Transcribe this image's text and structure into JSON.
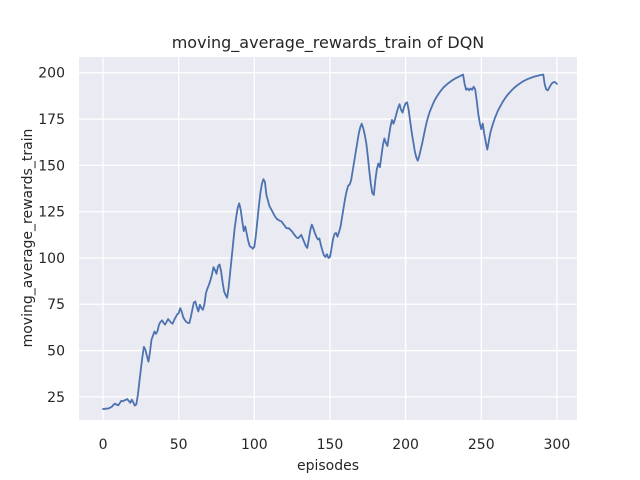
{
  "chart_data": {
    "type": "line",
    "title": "moving_average_rewards_train of DQN",
    "xlabel": "episodes",
    "ylabel": "moving_average_rewards_train",
    "x_ticks": [
      0,
      50,
      100,
      150,
      200,
      250,
      300
    ],
    "y_ticks": [
      25,
      50,
      75,
      100,
      125,
      150,
      175,
      200
    ],
    "xlim": [
      -15.9,
      313.3
    ],
    "ylim": [
      12.5,
      208.5
    ],
    "grid": true,
    "legend": null,
    "series": [
      {
        "name": "moving_average_rewards_train",
        "x_start": 0,
        "x_step": 1,
        "values": [
          18.5,
          18.4,
          18.7,
          18.6,
          18.9,
          19.3,
          19.8,
          20.8,
          21.3,
          20.8,
          20.4,
          21.5,
          22.8,
          22.6,
          23.0,
          23.4,
          23.8,
          22.8,
          21.8,
          23.5,
          22.0,
          20.3,
          21.0,
          26.0,
          33.0,
          40.0,
          46.5,
          52.0,
          50.5,
          47.0,
          44.0,
          49.0,
          55.8,
          58.0,
          60.3,
          59.0,
          60.5,
          64.0,
          65.5,
          66.3,
          65.0,
          64.0,
          65.5,
          67.0,
          66.0,
          65.0,
          64.5,
          66.5,
          68.0,
          69.5,
          70.2,
          72.9,
          71.0,
          68.0,
          66.5,
          65.5,
          65.0,
          64.8,
          68.0,
          72.0,
          76.0,
          76.5,
          73.5,
          71.1,
          74.7,
          73.0,
          72.0,
          75.0,
          81.0,
          83.5,
          85.5,
          88.0,
          91.0,
          95.0,
          93.5,
          91.5,
          95.5,
          96.5,
          93.0,
          87.0,
          82.0,
          80.0,
          78.5,
          84.0,
          92.0,
          100.0,
          108.0,
          116.0,
          122.0,
          127.0,
          129.5,
          126.0,
          120.0,
          114.5,
          117.0,
          113.0,
          109.0,
          106.3,
          105.8,
          105.0,
          106.0,
          112.0,
          120.0,
          128.0,
          135.0,
          140.0,
          142.5,
          141.0,
          134.0,
          131.0,
          128.0,
          126.5,
          125.0,
          123.4,
          122.0,
          121.0,
          120.5,
          120.0,
          119.7,
          118.5,
          117.5,
          116.2,
          116.0,
          116.0,
          115.0,
          114.3,
          113.0,
          112.0,
          111.0,
          110.7,
          111.5,
          112.5,
          110.5,
          108.5,
          106.5,
          105.4,
          110.0,
          115.0,
          118.0,
          116.0,
          113.5,
          111.5,
          110.0,
          110.5,
          107.0,
          104.0,
          101.5,
          100.5,
          102.0,
          100.0,
          100.5,
          105.0,
          110.0,
          113.0,
          113.5,
          111.5,
          114.0,
          117.0,
          122.0,
          127.0,
          132.0,
          136.0,
          139.0,
          139.6,
          142.0,
          147.0,
          152.0,
          157.0,
          162.0,
          167.0,
          170.5,
          172.5,
          170.0,
          166.5,
          162.0,
          155.0,
          147.0,
          140.0,
          135.0,
          134.0,
          142.0,
          148.0,
          151.0,
          149.0,
          155.0,
          161.0,
          164.5,
          162.0,
          160.5,
          166.0,
          171.0,
          174.5,
          172.5,
          175.0,
          178.0,
          181.0,
          183.0,
          180.0,
          178.5,
          181.5,
          183.5,
          184.0,
          180.0,
          174.0,
          168.0,
          163.0,
          158.0,
          154.5,
          152.5,
          155.0,
          158.5,
          162.0,
          166.0,
          170.0,
          173.5,
          176.5,
          179.0,
          181.0,
          183.0,
          184.8,
          186.3,
          187.6,
          188.8,
          190.0,
          191.0,
          192.0,
          192.8,
          193.5,
          194.2,
          194.8,
          195.4,
          196.0,
          196.5,
          197.0,
          197.4,
          197.8,
          198.2,
          198.6,
          199.0,
          194.0,
          190.8,
          191.5,
          190.5,
          191.5,
          190.8,
          192.5,
          191.0,
          185.0,
          178.0,
          173.0,
          169.5,
          172.5,
          167.0,
          162.5,
          158.5,
          163.0,
          167.5,
          170.5,
          173.0,
          175.5,
          177.5,
          179.5,
          181.0,
          182.5,
          184.0,
          185.3,
          186.5,
          187.6,
          188.6,
          189.5,
          190.4,
          191.2,
          192.0,
          192.7,
          193.3,
          193.9,
          194.5,
          195.0,
          195.5,
          195.9,
          196.3,
          196.7,
          197.0,
          197.3,
          197.6,
          197.9,
          198.1,
          198.3,
          198.5,
          198.7,
          198.9,
          199.0,
          193.5,
          191.0,
          190.5,
          192.0,
          193.5,
          194.5,
          195.0,
          194.8,
          194.0
        ]
      }
    ],
    "colors": {
      "figure_bg": "#ffffff",
      "axes_bg": "#eaeaf2",
      "grid": "#ffffff",
      "line": "#4c72b0",
      "text": "#262626"
    }
  }
}
